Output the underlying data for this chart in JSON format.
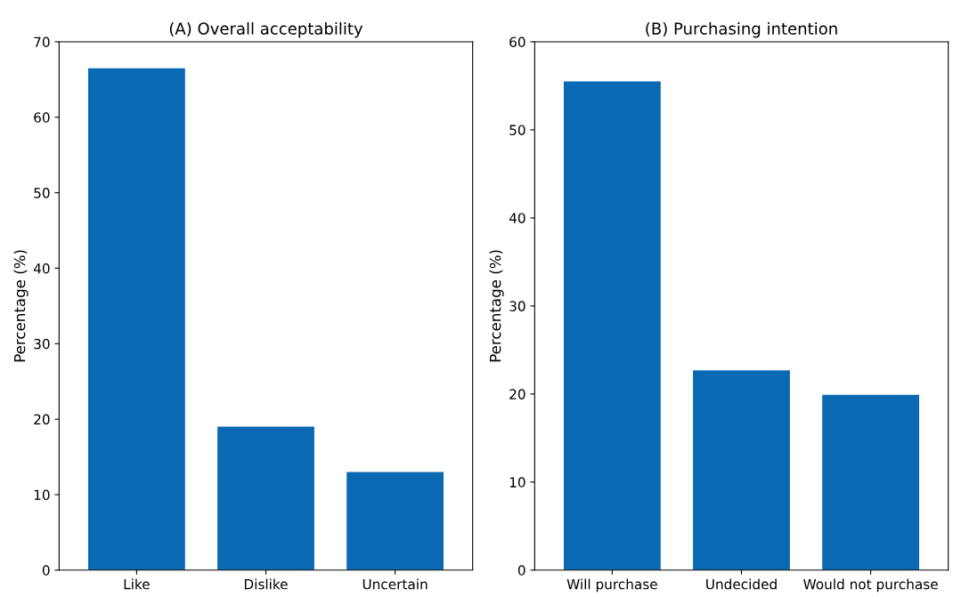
{
  "chart_data": [
    {
      "type": "bar",
      "title": "(A) Overall acceptability",
      "ylabel": "Percentage (%)",
      "categories": [
        "Like",
        "Dislike",
        "Uncertain"
      ],
      "values": [
        66.5,
        19.0,
        13.0
      ],
      "color": "#0b69b4",
      "ylim": [
        0,
        70
      ],
      "yticks": [
        0,
        10,
        20,
        30,
        40,
        50,
        60,
        70
      ],
      "grid": false
    },
    {
      "type": "bar",
      "title": "(B) Purchasing intention",
      "ylabel": "Percentage (%)",
      "categories": [
        "Will purchase",
        "Undecided",
        "Would not purchase"
      ],
      "values": [
        55.5,
        22.7,
        19.9
      ],
      "color": "#0b69b4",
      "ylim": [
        0,
        60
      ],
      "yticks": [
        0,
        10,
        20,
        30,
        40,
        50,
        60
      ],
      "grid": false
    }
  ]
}
